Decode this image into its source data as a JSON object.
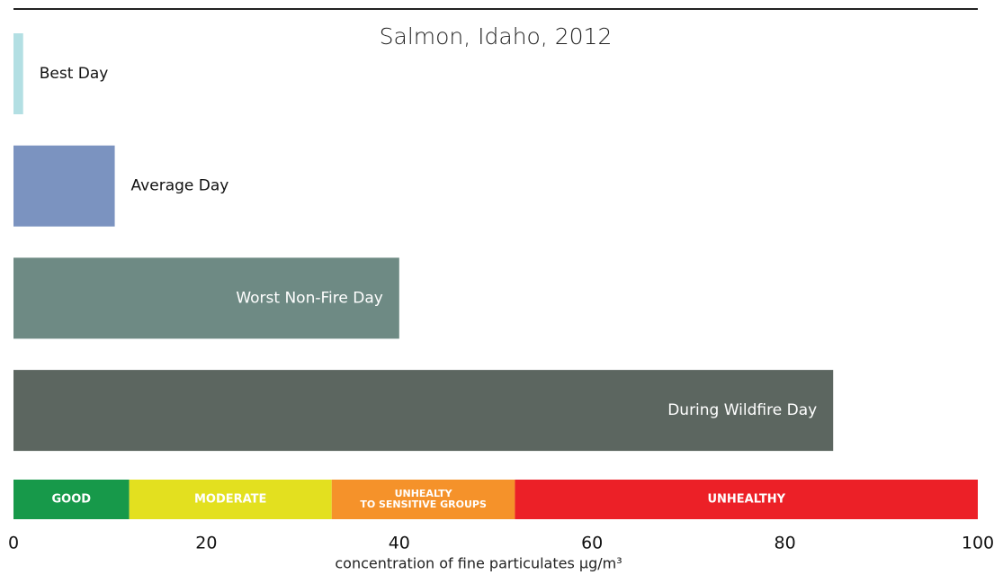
{
  "chart_data": {
    "type": "bar",
    "orientation": "horizontal",
    "title": "Salmon, Idaho, 2012",
    "xlabel": "concentration of fine particulates µg/m³",
    "categories": [
      "Best Day",
      "Average Day",
      "Worst Non-Fire Day",
      "During Wildfire Day"
    ],
    "values": [
      1,
      10.5,
      40,
      85
    ],
    "colors": [
      "#b3dfe3",
      "#7b93c0",
      "#6e8a84",
      "#5c6660"
    ],
    "xlim": [
      0,
      100
    ],
    "xticks": [
      0,
      20,
      40,
      60,
      80,
      100
    ],
    "bands": [
      {
        "lines": [
          "GOOD"
        ],
        "color": "#17994a",
        "from": 0,
        "to": 12
      },
      {
        "lines": [
          "MODERATE"
        ],
        "color": "#e3e01f",
        "from": 12,
        "to": 33
      },
      {
        "lines": [
          "UNHEALTY",
          "TO SENSITIVE GROUPS"
        ],
        "color": "#f5922a",
        "from": 33,
        "to": 52
      },
      {
        "lines": [
          "UNHEALTHY"
        ],
        "color": "#ec2027",
        "from": 52,
        "to": 100
      }
    ]
  }
}
